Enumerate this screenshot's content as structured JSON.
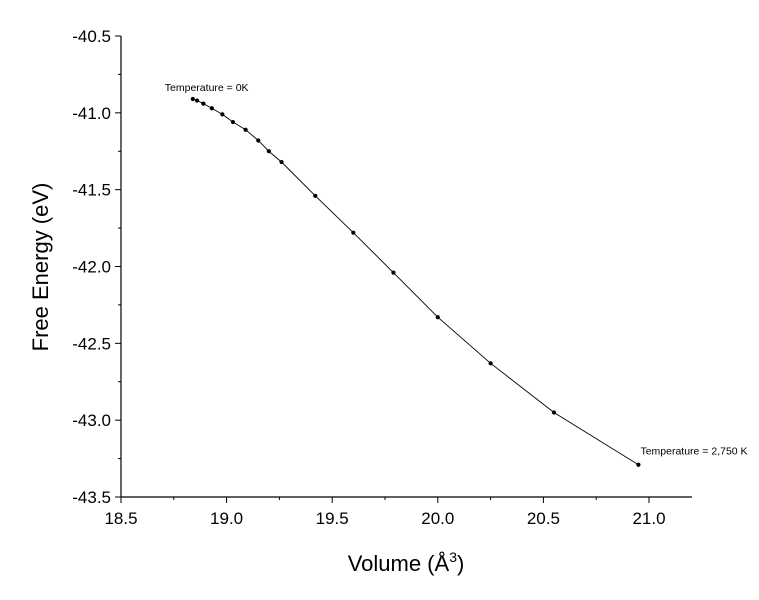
{
  "chart_data": {
    "type": "line",
    "xlabel": "Volume (Å",
    "xlabel_sup": "3",
    "xlabel_close": ")",
    "ylabel": "Free Energy (eV)",
    "xlim": [
      18.5,
      21.2
    ],
    "ylim": [
      -43.5,
      -40.5
    ],
    "xticks": [
      18.5,
      19.0,
      19.5,
      20.0,
      20.5,
      21.0
    ],
    "xtick_labels": [
      "18.5",
      "19.0",
      "19.5",
      "20.0",
      "20.5",
      "21.0"
    ],
    "yticks": [
      -40.5,
      -41.0,
      -41.5,
      -42.0,
      -42.5,
      -43.0,
      -43.5
    ],
    "ytick_labels": [
      "-40.5",
      "-41.0",
      "-41.5",
      "-42.0",
      "-42.5",
      "-43.0",
      "-43.5"
    ],
    "grid": false,
    "legend": "none",
    "line_color": "#000000",
    "series": [
      {
        "x": [
          18.84,
          18.86,
          18.89,
          18.93,
          18.98,
          19.03,
          19.09,
          19.15,
          19.2,
          19.26,
          19.42,
          19.6,
          19.79,
          20.0,
          20.25,
          20.55,
          20.95
        ],
        "y": [
          -40.91,
          -40.92,
          -40.94,
          -40.97,
          -41.01,
          -41.06,
          -41.11,
          -41.18,
          -41.25,
          -41.32,
          -41.54,
          -41.78,
          -42.04,
          -42.33,
          -42.63,
          -42.95,
          -43.29
        ]
      }
    ],
    "annotations": [
      {
        "text": "Temperature = 0K",
        "x": 18.84,
        "y": -40.91,
        "anchor": "above-left"
      },
      {
        "text": "Temperature = 2,750 K",
        "x": 20.95,
        "y": -43.29,
        "anchor": "above-right"
      }
    ]
  }
}
